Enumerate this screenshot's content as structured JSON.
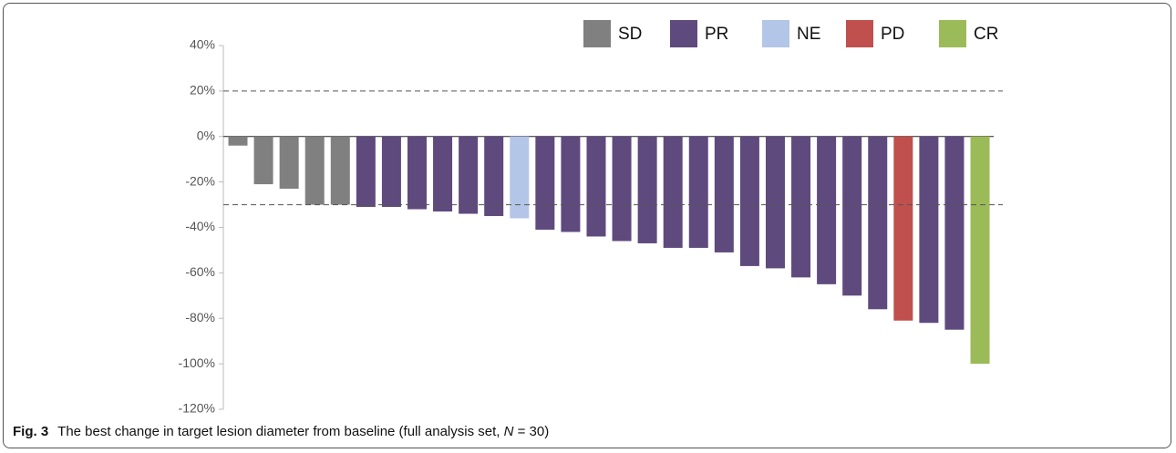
{
  "chart_data": {
    "type": "bar",
    "caption": {
      "label": "Fig. 3",
      "text": "The best change in target lesion diameter from baseline (full analysis set, ",
      "italic": "N",
      "end": " = 30)"
    },
    "categories": [
      null,
      null,
      null,
      null,
      null,
      null,
      null,
      null,
      null,
      null,
      null,
      null,
      null,
      null,
      null,
      null,
      null,
      null,
      null,
      null,
      null,
      null,
      null,
      null,
      null,
      null,
      null,
      null,
      null,
      null
    ],
    "series": [
      {
        "name": "SD",
        "color": "#808080",
        "values": [
          -4,
          -21,
          -23,
          -30,
          -30,
          null,
          null,
          null,
          null,
          null,
          null,
          null,
          null,
          null,
          null,
          null,
          null,
          null,
          null,
          null,
          null,
          null,
          null,
          null,
          null,
          null,
          null,
          null,
          null,
          null
        ]
      },
      {
        "name": "PR",
        "color": "#5f4a7e",
        "values": [
          null,
          null,
          null,
          null,
          null,
          -31,
          -31,
          -32,
          -33,
          -34,
          -35,
          null,
          -41,
          -42,
          -44,
          -46,
          -47,
          -49,
          -49,
          -51,
          -57,
          -58,
          -62,
          -65,
          -70,
          -76,
          null,
          -82,
          -85,
          null
        ]
      },
      {
        "name": "NE",
        "color": "#b4c6e7",
        "values": [
          null,
          null,
          null,
          null,
          null,
          null,
          null,
          null,
          null,
          null,
          null,
          -36,
          null,
          null,
          null,
          null,
          null,
          null,
          null,
          null,
          null,
          null,
          null,
          null,
          null,
          null,
          null,
          null,
          null,
          null
        ]
      },
      {
        "name": "PD",
        "color": "#c0504d",
        "values": [
          null,
          null,
          null,
          null,
          null,
          null,
          null,
          null,
          null,
          null,
          null,
          null,
          null,
          null,
          null,
          null,
          null,
          null,
          null,
          null,
          null,
          null,
          null,
          null,
          null,
          null,
          -81,
          null,
          null,
          null
        ]
      },
      {
        "name": "CR",
        "color": "#9bbb59",
        "values": [
          null,
          null,
          null,
          null,
          null,
          null,
          null,
          null,
          null,
          null,
          null,
          null,
          null,
          null,
          null,
          null,
          null,
          null,
          null,
          null,
          null,
          null,
          null,
          null,
          null,
          null,
          null,
          null,
          null,
          -100
        ]
      }
    ],
    "ylim": [
      -120,
      40
    ],
    "yticks": [
      {
        "value": -120,
        "label": "-120%"
      },
      {
        "value": -100,
        "label": "-100%"
      },
      {
        "value": -80,
        "label": "-80%"
      },
      {
        "value": -60,
        "label": "-60%"
      },
      {
        "value": -40,
        "label": "-40%"
      },
      {
        "value": -20,
        "label": "-20%"
      },
      {
        "value": 0,
        "label": "0%"
      },
      {
        "value": 20,
        "label": "20%"
      },
      {
        "value": 40,
        "label": "40%"
      }
    ],
    "reference_lines": [
      20,
      -30
    ],
    "legend": "top"
  }
}
